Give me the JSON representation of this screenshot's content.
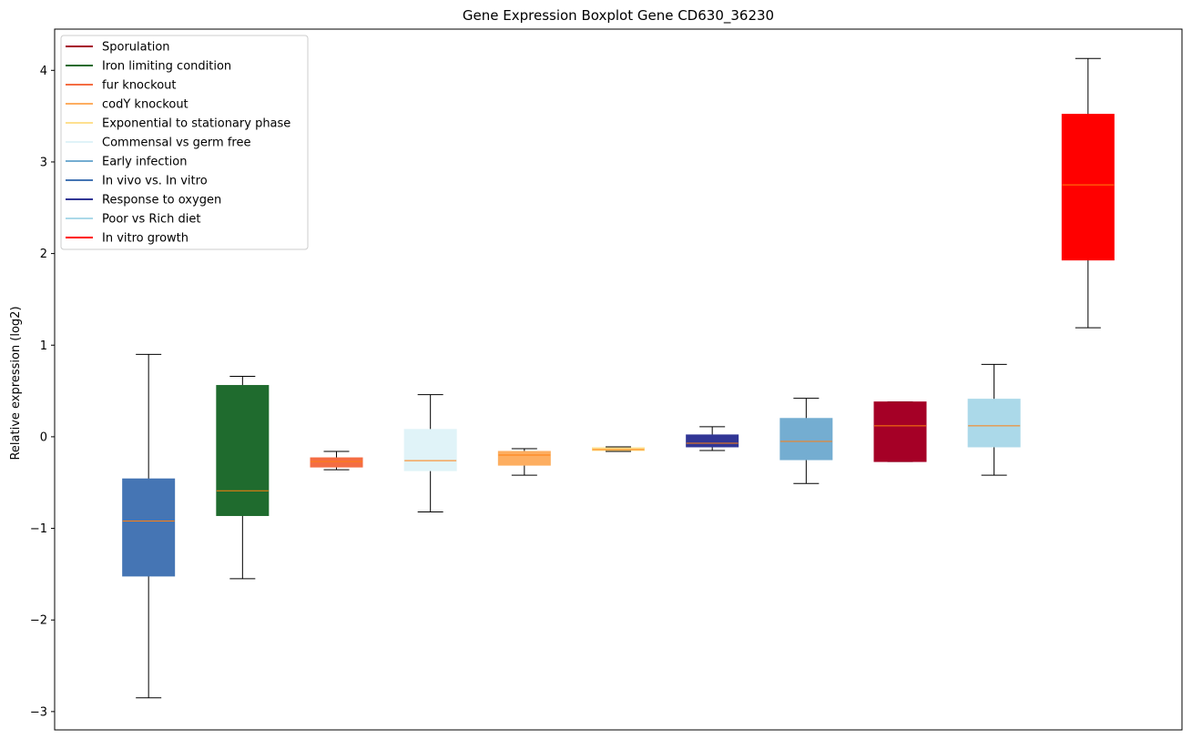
{
  "chart_data": {
    "type": "boxplot",
    "title": "Gene Expression Boxplot Gene CD630_36230",
    "xlabel": "",
    "ylabel": "Relative expression (log2)",
    "ylim": [
      -3.2,
      4.45
    ],
    "y_ticks": [
      -3,
      -2,
      -1,
      0,
      1,
      2,
      3,
      4
    ],
    "x_ticks_visible": false,
    "grid": false,
    "legend_position": "top-left",
    "median_color": "#ff7f0e",
    "legend": [
      {
        "label": "Sporulation",
        "color": "#a50026"
      },
      {
        "label": "Iron limiting condition",
        "color": "#1f6b2e"
      },
      {
        "label": "fur knockout",
        "color": "#f46d43"
      },
      {
        "label": "codY knockout",
        "color": "#fdae61"
      },
      {
        "label": "Exponential to stationary phase",
        "color": "#fee090"
      },
      {
        "label": "Commensal vs germ free",
        "color": "#e0f3f8"
      },
      {
        "label": "Early infection",
        "color": "#74add1"
      },
      {
        "label": "In vivo vs. In vitro",
        "color": "#4575b4"
      },
      {
        "label": "Response to oxygen",
        "color": "#313695"
      },
      {
        "label": "Poor vs Rich diet",
        "color": "#abd9e9"
      },
      {
        "label": "In vitro growth",
        "color": "#ff0000"
      }
    ],
    "boxes": [
      {
        "color": "#4575b4",
        "whisker_low": -2.85,
        "q1": -1.52,
        "median": -0.92,
        "q3": -0.46,
        "whisker_high": 0.9
      },
      {
        "color": "#1f6b2e",
        "whisker_low": -1.55,
        "q1": -0.86,
        "median": -0.59,
        "q3": 0.56,
        "whisker_high": 0.66
      },
      {
        "color": "#f46d43",
        "whisker_low": -0.36,
        "q1": -0.33,
        "median": -0.27,
        "q3": -0.23,
        "whisker_high": -0.16
      },
      {
        "color": "#e0f3f8",
        "whisker_low": -0.82,
        "q1": -0.37,
        "median": -0.26,
        "q3": 0.08,
        "whisker_high": 0.46
      },
      {
        "color": "#fdae61",
        "whisker_low": -0.42,
        "q1": -0.31,
        "median": -0.2,
        "q3": -0.16,
        "whisker_high": -0.13
      },
      {
        "color": "#fee090",
        "whisker_low": -0.16,
        "q1": -0.15,
        "median": -0.14,
        "q3": -0.12,
        "whisker_high": -0.11
      },
      {
        "color": "#313695",
        "whisker_low": -0.15,
        "q1": -0.11,
        "median": -0.07,
        "q3": 0.02,
        "whisker_high": 0.11
      },
      {
        "color": "#74add1",
        "whisker_low": -0.51,
        "q1": -0.25,
        "median": -0.05,
        "q3": 0.2,
        "whisker_high": 0.42
      },
      {
        "color": "#a50026",
        "whisker_low": -0.27,
        "q1": -0.27,
        "median": 0.12,
        "q3": 0.38,
        "whisker_high": 0.38
      },
      {
        "color": "#abd9e9",
        "whisker_low": -0.42,
        "q1": -0.11,
        "median": 0.12,
        "q3": 0.41,
        "whisker_high": 0.79
      },
      {
        "color": "#ff0000",
        "whisker_low": 1.19,
        "q1": 1.93,
        "median": 2.75,
        "q3": 3.52,
        "whisker_high": 4.13
      }
    ]
  }
}
